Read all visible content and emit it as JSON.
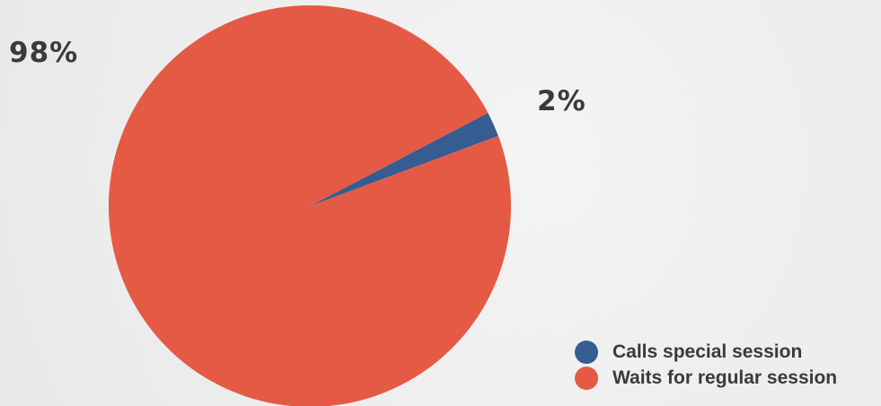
{
  "chart_data": {
    "type": "pie",
    "title": "",
    "categories": [
      "Calls special session",
      "Waits for regular session"
    ],
    "values": [
      2,
      98
    ],
    "data_labels": [
      "2%",
      "98%"
    ],
    "colors": [
      "#355d91",
      "#e55a45"
    ],
    "legend_position": "bottom-right"
  },
  "legend": {
    "items": [
      {
        "label": "Calls special session",
        "color": "#355d91"
      },
      {
        "label": "Waits for regular session",
        "color": "#e55a45"
      }
    ]
  }
}
